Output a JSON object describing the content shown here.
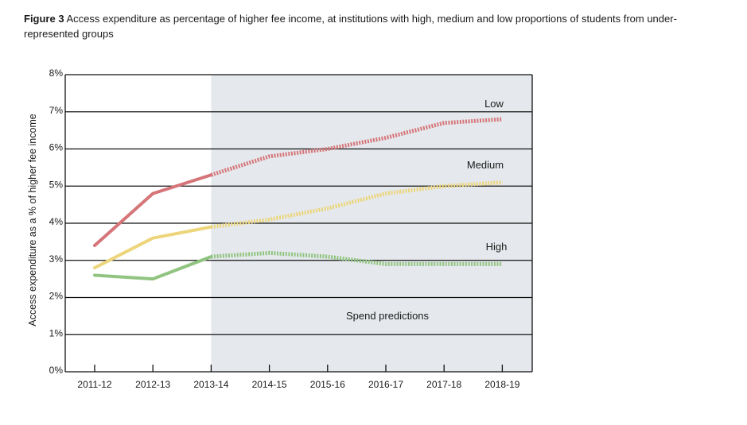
{
  "figure": {
    "label": "Figure 3",
    "caption": "Access expenditure as percentage of higher fee income, at institutions with high, medium and low proportions of students from under-represented groups"
  },
  "chart_data": {
    "type": "line",
    "title": "Access expenditure as percentage of higher fee income, at institutions with high, medium and low proportions of students from under-represented groups",
    "xlabel": "",
    "ylabel": "Access expenditure as a % of higher fee income",
    "categories": [
      "2011-12",
      "2012-13",
      "2013-14",
      "2014-15",
      "2015-16",
      "2016-17",
      "2017-18",
      "2018-19"
    ],
    "yticks": [
      "0%",
      "1%",
      "2%",
      "3%",
      "4%",
      "5%",
      "6%",
      "7%",
      "8%"
    ],
    "ylim": [
      0,
      8
    ],
    "grid": true,
    "prediction_start": "2013-14",
    "prediction_label": "Spend predictions",
    "shading_color": "#e5e9ed",
    "series": [
      {
        "name": "Low",
        "color": "#d67579",
        "values": [
          3.4,
          4.8,
          5.3,
          5.8,
          6.0,
          6.3,
          6.7,
          6.8
        ]
      },
      {
        "name": "Medium",
        "color": "#ecd57b",
        "values": [
          2.8,
          3.6,
          3.9,
          4.1,
          4.4,
          4.8,
          5.0,
          5.1
        ]
      },
      {
        "name": "High",
        "color": "#90c480",
        "values": [
          2.6,
          2.5,
          3.1,
          3.2,
          3.1,
          2.9,
          2.9,
          2.9
        ]
      }
    ]
  }
}
